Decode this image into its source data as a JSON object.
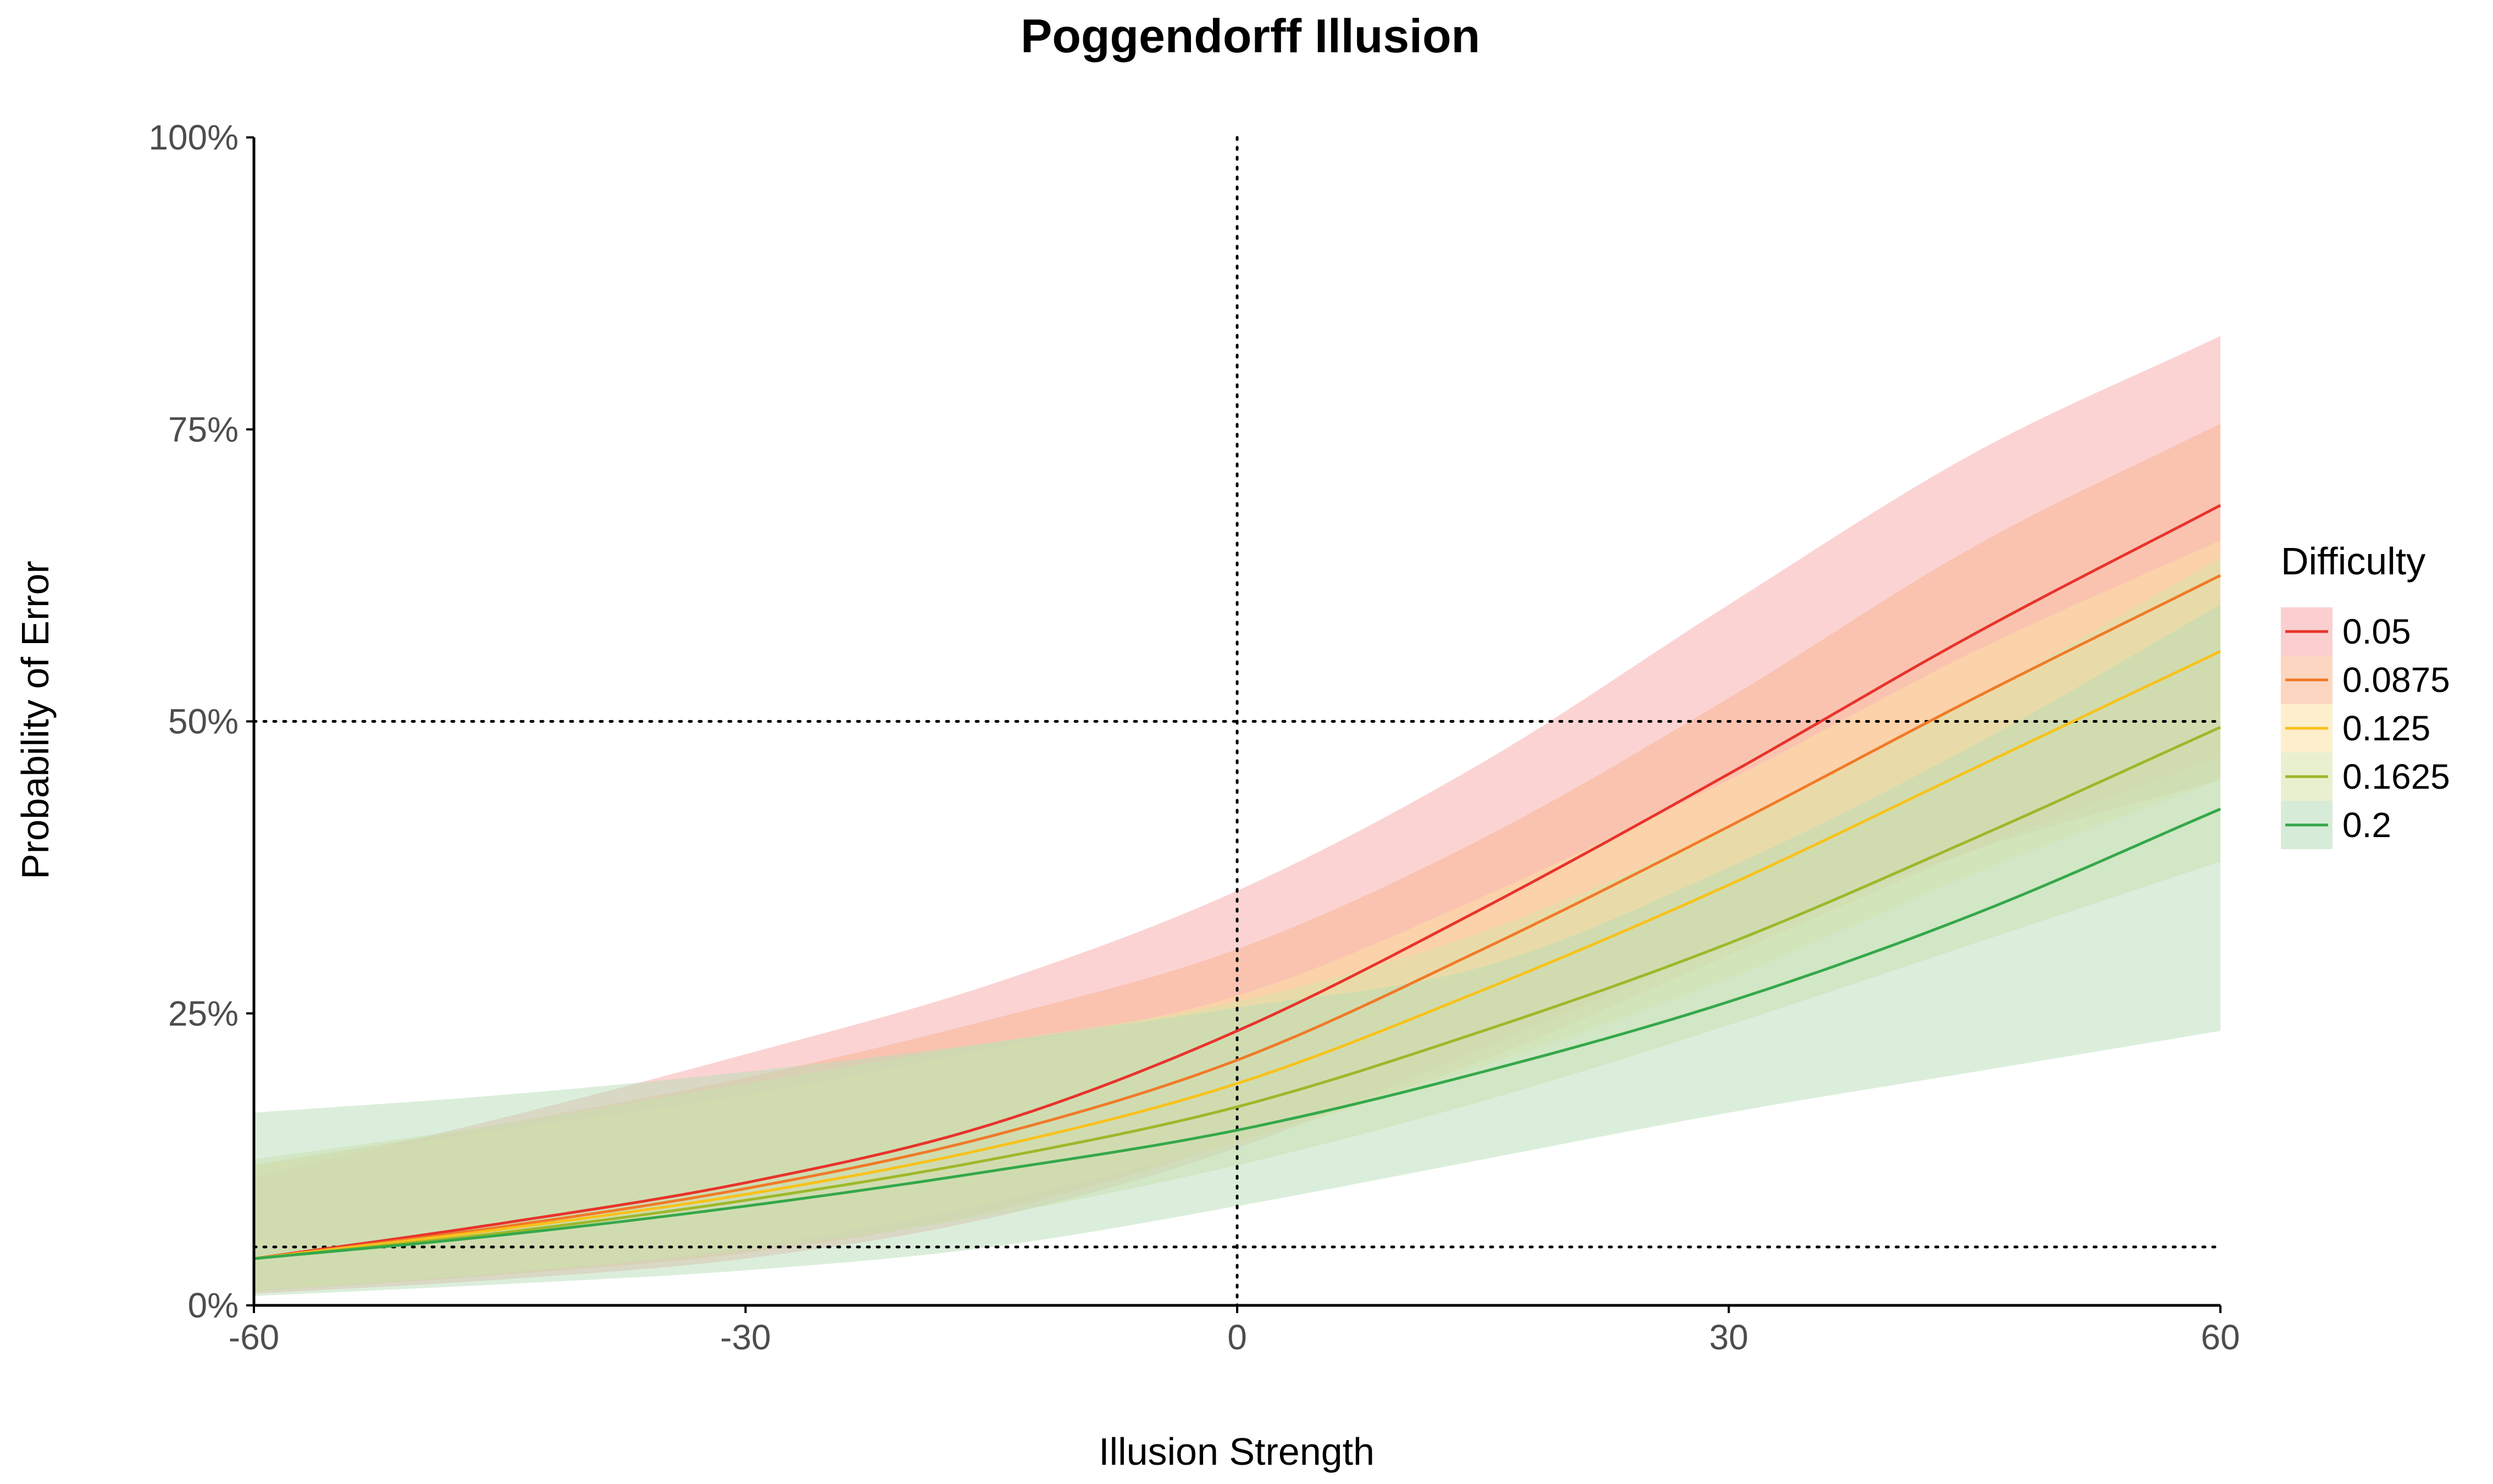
{
  "chart_data": {
    "type": "area",
    "title": "Poggendorff Illusion",
    "xlabel": "Illusion Strength",
    "ylabel": "Probability of Error",
    "xlim": [
      -60,
      60
    ],
    "ylim": [
      0,
      1
    ],
    "x_ticks": [
      -60,
      -30,
      0,
      30,
      60
    ],
    "x_tick_labels": [
      "-60",
      "-30",
      "0",
      "30",
      "60"
    ],
    "y_ticks": [
      0,
      0.25,
      0.5,
      0.75,
      1
    ],
    "y_tick_labels": [
      "0%",
      "25%",
      "50%",
      "75%",
      "100%"
    ],
    "grid": false,
    "reference_lines": {
      "vertical": [
        0
      ],
      "horizontal": [
        0.05,
        0.5
      ],
      "style": "dotted"
    },
    "legend": {
      "title": "Difficulty",
      "position": "right"
    },
    "x": [
      -60,
      -45,
      -30,
      -15,
      0,
      15,
      30,
      45,
      60
    ],
    "series": [
      {
        "name": "0.05",
        "color": "#E8332B",
        "fill": "#F8A8A8",
        "values": [
          0.04,
          0.07,
          0.105,
          0.155,
          0.235,
          0.34,
          0.455,
          0.575,
          0.685
        ],
        "lower": [
          0.01,
          0.022,
          0.04,
          0.075,
          0.135,
          0.22,
          0.31,
          0.39,
          0.45
        ],
        "upper": [
          0.11,
          0.16,
          0.215,
          0.275,
          0.355,
          0.465,
          0.6,
          0.73,
          0.83
        ]
      },
      {
        "name": "0.0875",
        "color": "#F07A28",
        "fill": "#F9B48E",
        "values": [
          0.04,
          0.067,
          0.1,
          0.145,
          0.21,
          0.305,
          0.41,
          0.52,
          0.625
        ],
        "lower": [
          0.012,
          0.026,
          0.045,
          0.08,
          0.14,
          0.21,
          0.3,
          0.39,
          0.47
        ],
        "upper": [
          0.12,
          0.155,
          0.195,
          0.245,
          0.305,
          0.4,
          0.52,
          0.65,
          0.755
        ]
      },
      {
        "name": "0.125",
        "color": "#F8C21B",
        "fill": "#FCE2A3",
        "values": [
          0.04,
          0.065,
          0.095,
          0.135,
          0.19,
          0.27,
          0.36,
          0.46,
          0.56
        ],
        "lower": [
          0.013,
          0.028,
          0.05,
          0.088,
          0.14,
          0.205,
          0.28,
          0.37,
          0.45
        ],
        "upper": [
          0.12,
          0.15,
          0.18,
          0.22,
          0.265,
          0.35,
          0.45,
          0.56,
          0.655
        ]
      },
      {
        "name": "0.1625",
        "color": "#9DB82A",
        "fill": "#D7E4A8",
        "values": [
          0.04,
          0.062,
          0.09,
          0.125,
          0.17,
          0.235,
          0.31,
          0.4,
          0.495
        ],
        "lower": [
          0.012,
          0.027,
          0.047,
          0.077,
          0.12,
          0.175,
          0.24,
          0.31,
          0.38
        ],
        "upper": [
          0.125,
          0.155,
          0.19,
          0.225,
          0.26,
          0.32,
          0.41,
          0.52,
          0.64
        ]
      },
      {
        "name": "0.2",
        "color": "#35A84A",
        "fill": "#B7DDB8",
        "values": [
          0.04,
          0.06,
          0.085,
          0.115,
          0.15,
          0.2,
          0.26,
          0.335,
          0.425
        ],
        "lower": [
          0.008,
          0.018,
          0.03,
          0.05,
          0.085,
          0.125,
          0.165,
          0.2,
          0.235
        ],
        "upper": [
          0.165,
          0.18,
          0.2,
          0.225,
          0.255,
          0.29,
          0.375,
          0.48,
          0.6
        ]
      }
    ]
  }
}
